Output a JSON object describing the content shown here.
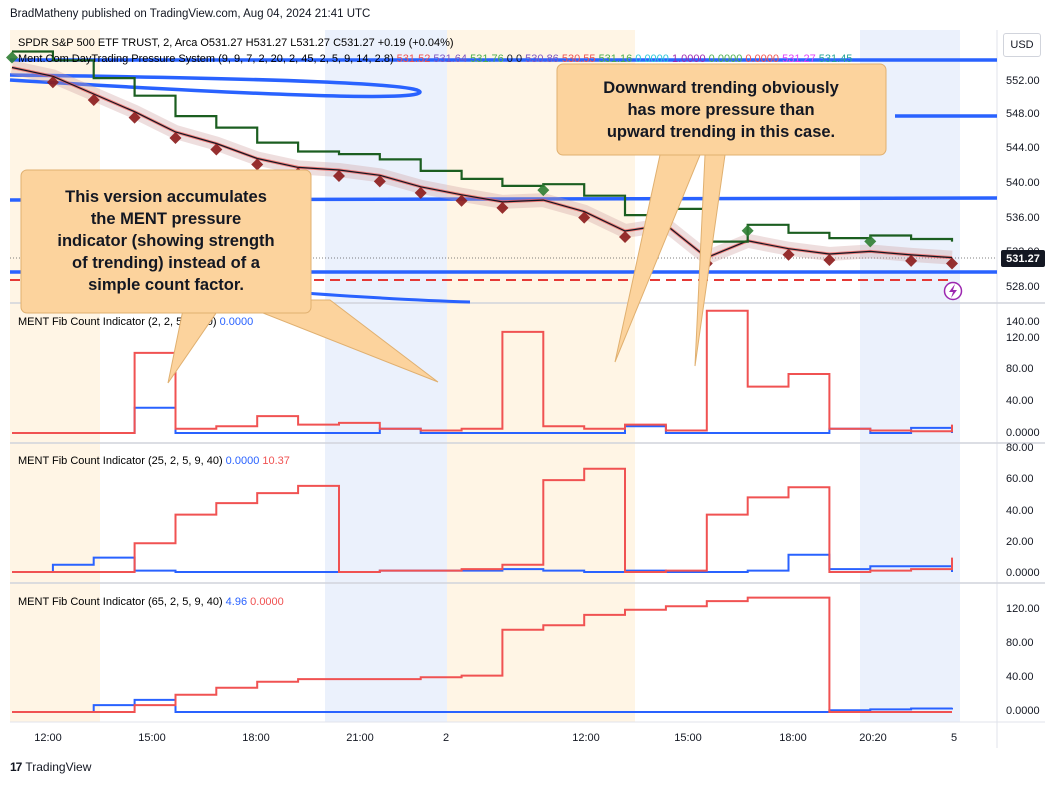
{
  "header": {
    "publisher_line": "BradMatheny published on TradingView.com, Aug 04, 2024 21:41 UTC"
  },
  "footer": {
    "brand": "TradingView",
    "logo_glyph": "17"
  },
  "main_chart": {
    "symbol_line": "SPDR S&P 500 ETF TRUST, 2, Arca  O531.27  H531.27  L531.27  C531.27  +0.19 (+0.04%)",
    "indicator_line_prefix": "Ment.Com DayTrading Pressure System (9, 9, 7, 2, 20, 2, 45, 2, 5, 9, 14, 2.8)",
    "indicator_values": [
      {
        "text": "531.52",
        "color": "#ef5350"
      },
      {
        "text": "531.64",
        "color": "#7e57c2"
      },
      {
        "text": "531.76",
        "color": "#4caf50"
      },
      {
        "text": "0",
        "color": "#131722"
      },
      {
        "text": "0",
        "color": "#131722"
      },
      {
        "text": "530.86",
        "color": "#7e57c2"
      },
      {
        "text": "530.55",
        "color": "#ef5350"
      },
      {
        "text": "531.16",
        "color": "#4caf50"
      },
      {
        "text": "0.0000",
        "color": "#26c6da"
      },
      {
        "text": "1.0000",
        "color": "#9c27b0"
      },
      {
        "text": "0.0000",
        "color": "#4caf50"
      },
      {
        "text": "0.0000",
        "color": "#ef5350"
      },
      {
        "text": "531.27",
        "color": "#e040fb"
      },
      {
        "text": "531.45",
        "color": "#26a69a"
      }
    ],
    "currency": "USD",
    "y_ticks": [
      "552.00",
      "548.00",
      "544.00",
      "540.00",
      "536.00",
      "532.00",
      "528.00"
    ],
    "last_price": "531.27"
  },
  "time_axis": [
    "12:00",
    "15:00",
    "18:00",
    "21:00",
    "2",
    "12:00",
    "15:00",
    "18:00",
    "20:20",
    "5"
  ],
  "panes": [
    {
      "title": "MENT Fib Count Indicator (2, 2, 5, 9, 40)",
      "v1": "0.0000",
      "v2": "",
      "ticks": [
        "140.00",
        "120.00",
        "80.00",
        "40.00",
        "0.0000"
      ]
    },
    {
      "title": "MENT Fib Count Indicator (25, 2, 5, 9, 40)",
      "v1": "0.0000",
      "v2": "10.37",
      "ticks": [
        "80.00",
        "60.00",
        "40.00",
        "20.00",
        "0.0000"
      ]
    },
    {
      "title": "MENT Fib Count Indicator (65, 2, 5, 9, 40)",
      "v1": "4.96",
      "v2": "0.0000",
      "ticks": [
        "120.00",
        "80.00",
        "40.00",
        "0.0000"
      ]
    }
  ],
  "callouts": [
    {
      "lines": [
        "This version accumulates",
        "the MENT pressure",
        "indicator (showing strength",
        "of trending) instead of a",
        "simple count factor."
      ]
    },
    {
      "lines": [
        "Downward trending obviously",
        "has more pressure than",
        "upward trending in this case."
      ]
    }
  ],
  "colors": {
    "red": "#f05252",
    "blue": "#2962ff",
    "green": "#1b5e20",
    "callout": "#fcd39d"
  },
  "chart_data": [
    {
      "type": "line",
      "title": "SPDR S&P 500 ETF TRUST, 2, Arca",
      "x": [
        0,
        2,
        4,
        6,
        8,
        10,
        12,
        14,
        16,
        18,
        20,
        22,
        24,
        26,
        28,
        30,
        32,
        34,
        36,
        38,
        40,
        42,
        44,
        46
      ],
      "series": [
        {
          "values": [
            552.8,
            551.8,
            549.8,
            547.8,
            545.5,
            544.2,
            542.5,
            541.5,
            541.2,
            540.6,
            539.3,
            538.4,
            537.6,
            537.8,
            536.5,
            534.3,
            535.0,
            531.3,
            533.2,
            532.3,
            531.7,
            532.0,
            531.6,
            531.3
          ]
        }
      ],
      "ylim": [
        526.5,
        555
      ]
    },
    {
      "type": "line",
      "title": "MENT Fib Count Indicator (2, 2, 5, 9, 40)",
      "ylim": [
        0,
        140
      ],
      "series": [
        {
          "values": [
            0,
            0,
            0,
            30,
            0,
            0,
            0,
            0,
            0,
            5,
            0,
            0,
            0,
            0,
            0,
            8,
            0,
            0,
            0,
            0,
            5,
            0,
            6,
            0
          ]
        },
        {
          "values": [
            0,
            0,
            0,
            95,
            5,
            8,
            20,
            10,
            12,
            5,
            3,
            5,
            120,
            8,
            5,
            10,
            3,
            145,
            55,
            70,
            5,
            3,
            2,
            10
          ]
        }
      ]
    },
    {
      "type": "line",
      "title": "MENT Fib Count Indicator (25, 2, 5, 9, 40)",
      "ylim": [
        0,
        85
      ],
      "series": [
        {
          "values": [
            0,
            5,
            10,
            1,
            0,
            0,
            0,
            0,
            0,
            1,
            1,
            1,
            2,
            1,
            0,
            1,
            0,
            0,
            1,
            12,
            2,
            4,
            4,
            0
          ]
        },
        {
          "values": [
            0,
            0,
            0,
            20,
            40,
            48,
            55,
            60,
            0,
            1,
            1,
            2,
            5,
            64,
            72,
            0,
            1,
            40,
            52,
            59,
            0,
            1,
            2,
            10
          ]
        }
      ]
    },
    {
      "type": "line",
      "title": "MENT Fib Count Indicator (65, 2, 5, 9, 40)",
      "ylim": [
        0,
        135
      ],
      "series": [
        {
          "values": [
            0,
            0,
            8,
            14,
            0,
            0,
            0,
            0,
            0,
            0,
            0,
            0,
            0,
            0,
            0,
            0,
            0,
            0,
            0,
            0,
            2,
            3,
            4,
            5
          ]
        },
        {
          "values": [
            0,
            0,
            0,
            8,
            20,
            28,
            35,
            38,
            38,
            38,
            40,
            42,
            95,
            100,
            112,
            118,
            122,
            128,
            132,
            132,
            0,
            0,
            0,
            0
          ]
        }
      ]
    }
  ]
}
